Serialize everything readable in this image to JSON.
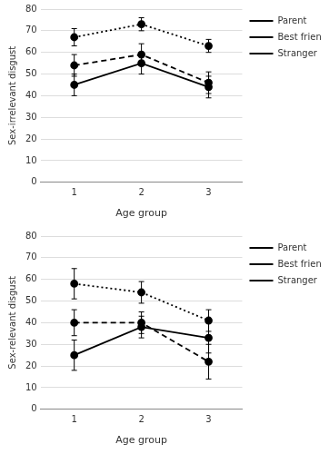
{
  "chart_data": [
    {
      "type": "line",
      "x": [
        1,
        2,
        3
      ],
      "xlabel": "Age group",
      "ylabel": "Sex-irrelevant disgust",
      "xlim": [
        0.5,
        3.5
      ],
      "xticks": [
        1,
        2,
        3
      ],
      "ylim": [
        0,
        80
      ],
      "yticks": [
        0,
        10,
        20,
        30,
        40,
        50,
        60,
        70,
        80
      ],
      "grid": "y",
      "legend": "right",
      "series": [
        {
          "name": "Parent",
          "color": "#000000",
          "line_style": "solid",
          "marker": "circle",
          "values": [
            45,
            55,
            44
          ],
          "errors": [
            5,
            5,
            5
          ]
        },
        {
          "name": "Best friend",
          "color": "#000000",
          "line_style": "dashed",
          "marker": "circle",
          "values": [
            54,
            59,
            46
          ],
          "errors": [
            5,
            5,
            5
          ]
        },
        {
          "name": "Stranger",
          "color": "#000000",
          "line_style": "dotted",
          "marker": "circle",
          "values": [
            67,
            73,
            63
          ],
          "errors": [
            4,
            3,
            3
          ]
        }
      ]
    },
    {
      "type": "line",
      "x": [
        1,
        2,
        3
      ],
      "xlabel": "Age group",
      "ylabel": "Sex-relevant disgust",
      "xlim": [
        0.5,
        3.5
      ],
      "xticks": [
        1,
        2,
        3
      ],
      "ylim": [
        0,
        80
      ],
      "yticks": [
        0,
        10,
        20,
        30,
        40,
        50,
        60,
        70,
        80
      ],
      "grid": "y",
      "legend": "right",
      "series": [
        {
          "name": "Parent",
          "color": "#000000",
          "line_style": "solid",
          "marker": "circle",
          "values": [
            25,
            38,
            33
          ],
          "errors": [
            7,
            5,
            7
          ]
        },
        {
          "name": "Best friend",
          "color": "#000000",
          "line_style": "dashed",
          "marker": "circle",
          "values": [
            40,
            40,
            22
          ],
          "errors": [
            6,
            5,
            8
          ]
        },
        {
          "name": "Stranger",
          "color": "#000000",
          "line_style": "dotted",
          "marker": "circle",
          "values": [
            58,
            54,
            41
          ],
          "errors": [
            7,
            5,
            5
          ]
        }
      ]
    }
  ]
}
